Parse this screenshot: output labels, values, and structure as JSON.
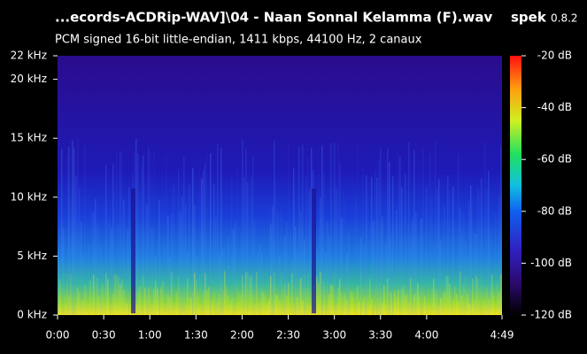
{
  "chart_data": {
    "type": "spectrogram",
    "title": "...ecords-ACDRip-WAV]\\04 - Naan Sonnal Kelamma (F).wav",
    "app_name": "spek",
    "app_version": "0.8.2",
    "subtitle": "PCM signed 16-bit little-endian, 1411 kbps, 44100 Hz, 2 canaux",
    "xlim": [
      0,
      289
    ],
    "xticks": [
      {
        "value": 0,
        "label": "0:00"
      },
      {
        "value": 30,
        "label": "0:30"
      },
      {
        "value": 60,
        "label": "1:00"
      },
      {
        "value": 90,
        "label": "1:30"
      },
      {
        "value": 120,
        "label": "2:00"
      },
      {
        "value": 150,
        "label": "2:30"
      },
      {
        "value": 180,
        "label": "3:00"
      },
      {
        "value": 210,
        "label": "3:30"
      },
      {
        "value": 240,
        "label": "4:00"
      },
      {
        "value": 289,
        "label": "4:49"
      }
    ],
    "ylim": [
      0,
      22
    ],
    "yticks": [
      {
        "value": 0,
        "label": "0 kHz"
      },
      {
        "value": 5,
        "label": "5 kHz"
      },
      {
        "value": 10,
        "label": "10 kHz"
      },
      {
        "value": 15,
        "label": "15 kHz"
      },
      {
        "value": 20,
        "label": "20 kHz"
      },
      {
        "value": 22,
        "label": "22 kHz"
      }
    ],
    "colorbar_lim": [
      -120,
      -20
    ],
    "colorbar_ticks": [
      {
        "value": -20,
        "label": "-20 dB"
      },
      {
        "value": -40,
        "label": "-40 dB"
      },
      {
        "value": -60,
        "label": "-60 dB"
      },
      {
        "value": -80,
        "label": "-80 dB"
      },
      {
        "value": -100,
        "label": "-100 dB"
      },
      {
        "value": -120,
        "label": "-120 dB"
      }
    ]
  }
}
